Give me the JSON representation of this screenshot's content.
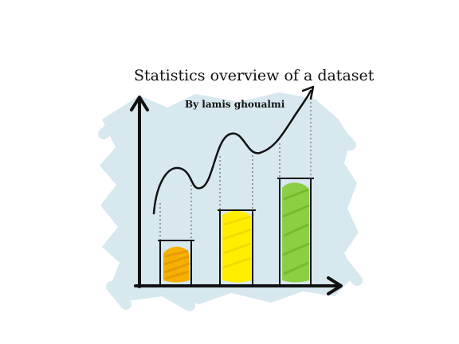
{
  "title": "Statistics overview of a dataset",
  "byline": "By lamis ghoualmi",
  "colors": {
    "backdrop": "#d7e8ef",
    "ink": "#111111",
    "bar_orange": "#f5b000",
    "bar_yellow": "#ffee00",
    "bar_green": "#8ccf45"
  }
}
